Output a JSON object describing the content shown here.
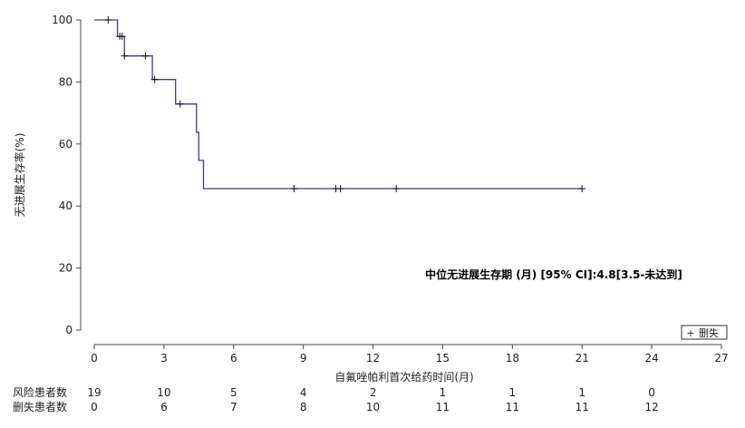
{
  "chart_data": {
    "type": "line",
    "title": "",
    "xlabel": "自氟唑帕利首次给药时间(月)",
    "ylabel": "无进展生存率(%)",
    "xlim": [
      0,
      27
    ],
    "ylim": [
      0,
      100
    ],
    "x_ticks": [
      "0",
      "3",
      "6",
      "9",
      "12",
      "15",
      "18",
      "21",
      "24",
      "27"
    ],
    "y_ticks": [
      "0",
      "20",
      "40",
      "60",
      "80",
      "100"
    ],
    "grid": false,
    "series": [
      {
        "color": "#3a3aa8",
        "step_points": [
          [
            0,
            100
          ],
          [
            1.0,
            100
          ],
          [
            1.0,
            94.7
          ],
          [
            1.3,
            94.7
          ],
          [
            1.3,
            88.4
          ],
          [
            2.5,
            88.4
          ],
          [
            2.5,
            80.8
          ],
          [
            3.5,
            80.8
          ],
          [
            3.5,
            72.9
          ],
          [
            4.4,
            72.9
          ],
          [
            4.4,
            63.8
          ],
          [
            4.5,
            63.8
          ],
          [
            4.5,
            54.7
          ],
          [
            4.7,
            54.7
          ],
          [
            4.7,
            45.6
          ],
          [
            21.0,
            45.6
          ]
        ],
        "censor_points": [
          [
            0.6,
            100
          ],
          [
            1.1,
            94.7
          ],
          [
            1.2,
            94.7
          ],
          [
            1.3,
            88.4
          ],
          [
            2.2,
            88.4
          ],
          [
            2.6,
            80.8
          ],
          [
            3.7,
            72.9
          ],
          [
            8.6,
            45.6
          ],
          [
            10.4,
            45.6
          ],
          [
            10.6,
            45.6
          ],
          [
            13.0,
            45.6
          ],
          [
            21.0,
            45.6
          ]
        ]
      }
    ],
    "legend": {
      "position": "bottom-right",
      "label": "删失",
      "marker": "+"
    },
    "annotation": "中位无进展生存期 (月) [95% CI]:4.8[3.5-未达到]",
    "risk_table": {
      "time_points": [
        0,
        3,
        6,
        9,
        12,
        15,
        18,
        21,
        24
      ],
      "rows": [
        {
          "label": "风险患者数",
          "values": [
            "19",
            "10",
            "5",
            "4",
            "2",
            "1",
            "1",
            "1",
            "0"
          ]
        },
        {
          "label": "删失患者数",
          "values": [
            "0",
            "6",
            "7",
            "8",
            "10",
            "11",
            "11",
            "11",
            "12"
          ]
        }
      ]
    }
  }
}
